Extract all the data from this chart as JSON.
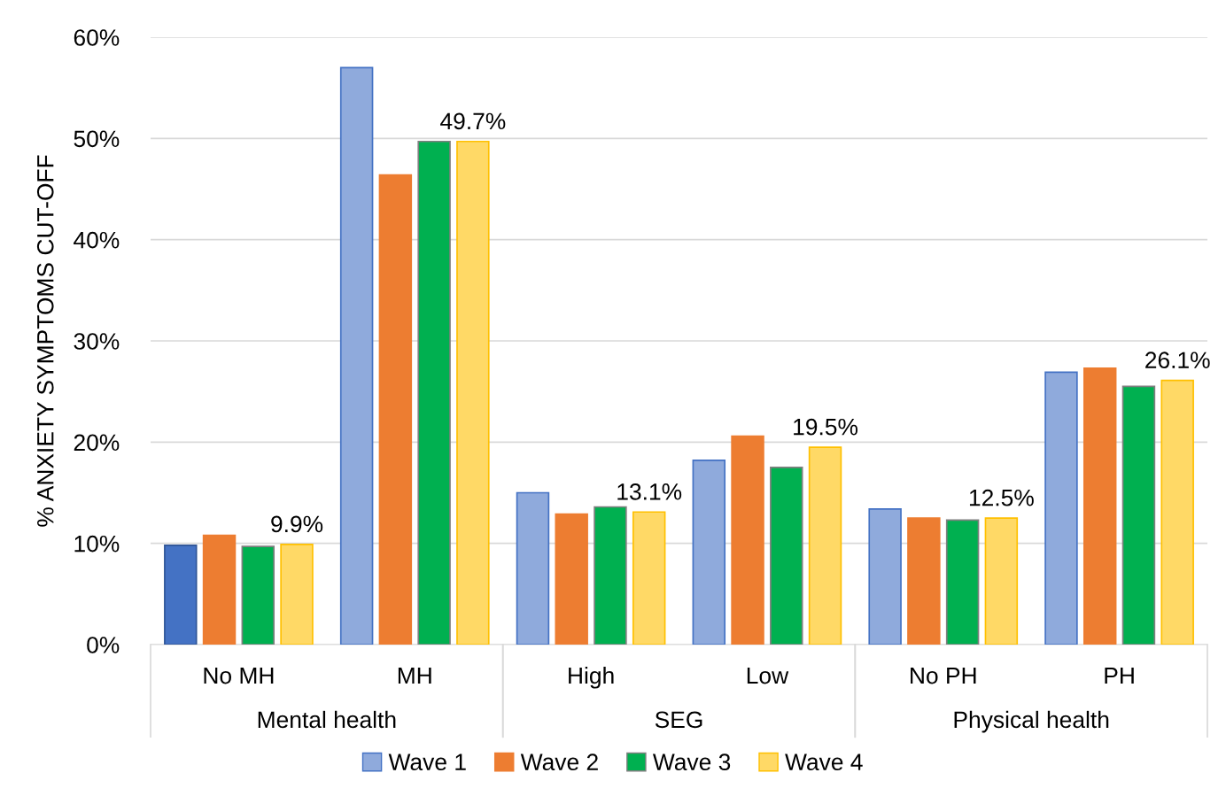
{
  "chart_data": {
    "type": "bar",
    "ylabel": "% ANXIETY SYMPTOMS CUT-OFF",
    "categories": [
      "No MH",
      "MH",
      "High",
      "Low",
      "No PH",
      "PH"
    ],
    "annotations": [
      "Mental health",
      "SEG",
      "Physical health"
    ],
    "series": [
      {
        "name": "Wave 1",
        "color": "#8faadc",
        "colors": [
          "#4472c4",
          "#8faadc",
          "#8faadc",
          "#8faadc",
          "#8faadc",
          "#8faadc"
        ],
        "values": [
          9.8,
          57.0,
          15.0,
          18.2,
          13.4,
          26.9
        ]
      },
      {
        "name": "Wave 2",
        "color": "#ed7d31",
        "values": [
          10.8,
          46.4,
          12.9,
          20.6,
          12.5,
          27.3
        ]
      },
      {
        "name": "Wave 3",
        "color": "#00b050",
        "values": [
          9.7,
          49.7,
          13.6,
          17.5,
          12.3,
          25.5
        ]
      },
      {
        "name": "Wave 4",
        "color": "#ffd966",
        "values": [
          9.9,
          49.7,
          13.1,
          19.5,
          12.5,
          26.1
        ],
        "value_labels": [
          "9.9%",
          "49.7%",
          "13.1%",
          "19.5%",
          "12.5%",
          "26.1%"
        ]
      }
    ],
    "ylim": [
      0,
      60
    ],
    "yticks": [
      {
        "value": 0,
        "label": "0%"
      },
      {
        "value": 10,
        "label": "10%"
      },
      {
        "value": 20,
        "label": "20%"
      },
      {
        "value": 30,
        "label": "30%"
      },
      {
        "value": 40,
        "label": "40%"
      },
      {
        "value": 50,
        "label": "50%"
      },
      {
        "value": 60,
        "label": "60%"
      }
    ],
    "grid": "y",
    "legend": "bottom"
  }
}
